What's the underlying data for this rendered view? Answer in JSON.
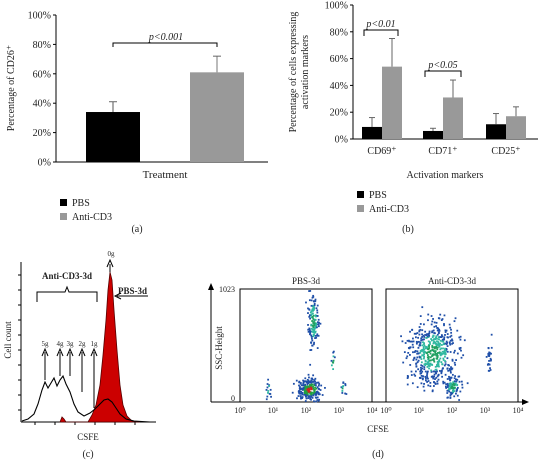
{
  "chart_data": [
    {
      "id": "a",
      "type": "bar",
      "panel_label": "(a)",
      "xlabel": "Treatment",
      "ylabel": "Percentage of CD26⁺",
      "ylim": [
        0,
        100
      ],
      "yticks": [
        "0%",
        "20%",
        "40%",
        "60%",
        "80%",
        "100%"
      ],
      "categories": [
        "PBS",
        "Anti-CD3"
      ],
      "values": [
        34,
        61
      ],
      "errors": [
        7,
        11
      ],
      "colors": [
        "#000000",
        "#999999"
      ],
      "annotation": "p<0.001",
      "legend": [
        {
          "label": "PBS",
          "color": "#000000"
        },
        {
          "label": "Anti-CD3",
          "color": "#999999"
        }
      ]
    },
    {
      "id": "b",
      "type": "bar",
      "panel_label": "(b)",
      "xlabel": "Activation markers",
      "ylabel_lines": [
        "Percentage of cells expressing",
        "activation markers"
      ],
      "ylim": [
        0,
        100
      ],
      "yticks": [
        "0%",
        "20%",
        "40%",
        "60%",
        "80%",
        "100%"
      ],
      "categories": [
        "CD69⁺",
        "CD71⁺",
        "CD25⁺"
      ],
      "series": [
        {
          "name": "PBS",
          "color": "#000000",
          "values": [
            9,
            6,
            11
          ],
          "errors": [
            7,
            2,
            8
          ]
        },
        {
          "name": "Anti-CD3",
          "color": "#999999",
          "values": [
            54,
            31,
            17
          ],
          "errors": [
            21,
            13,
            7
          ]
        }
      ],
      "annotations": [
        "p<0.01",
        "p<0.05"
      ],
      "legend": [
        {
          "label": "PBS",
          "color": "#000000"
        },
        {
          "label": "Anti-CD3",
          "color": "#999999"
        }
      ]
    },
    {
      "id": "c",
      "type": "area",
      "panel_label": "(c)",
      "xlabel": "CSFE",
      "ylabel": "Cell count",
      "labels": {
        "bracket": "Anti-CD3-3d",
        "pbs": "PBS-3d",
        "peaks": [
          "5g",
          "4g",
          "3g",
          "2g",
          "1g",
          "0g"
        ]
      },
      "series": [
        {
          "name": "PBS-3d",
          "color": "#cc0000"
        },
        {
          "name": "Anti-CD3-3d",
          "color": "#000000"
        }
      ]
    },
    {
      "id": "d",
      "type": "scatter",
      "panel_label": "(d)",
      "xlabel": "CFSE",
      "ylabel": "SSC-Height",
      "y_top_label": "1023",
      "y_zero_label": "0",
      "x_scale": "log",
      "xticks": [
        "10⁰",
        "10¹",
        "10²",
        "10³",
        "10⁴"
      ],
      "panels": [
        {
          "title": "PBS-3d",
          "populations": [
            {
              "x_log": 2.1,
              "ssc": 120,
              "role": "main cluster"
            },
            {
              "x_log": 2.2,
              "ssc": 740,
              "role": "upper cluster"
            }
          ]
        },
        {
          "title": "Anti-CD3-3d",
          "populations": [
            {
              "x_log": 1.4,
              "ssc": 450,
              "role": "divided cells"
            },
            {
              "x_log": 2.0,
              "ssc": 150,
              "role": "undivided cells"
            }
          ]
        }
      ]
    }
  ]
}
